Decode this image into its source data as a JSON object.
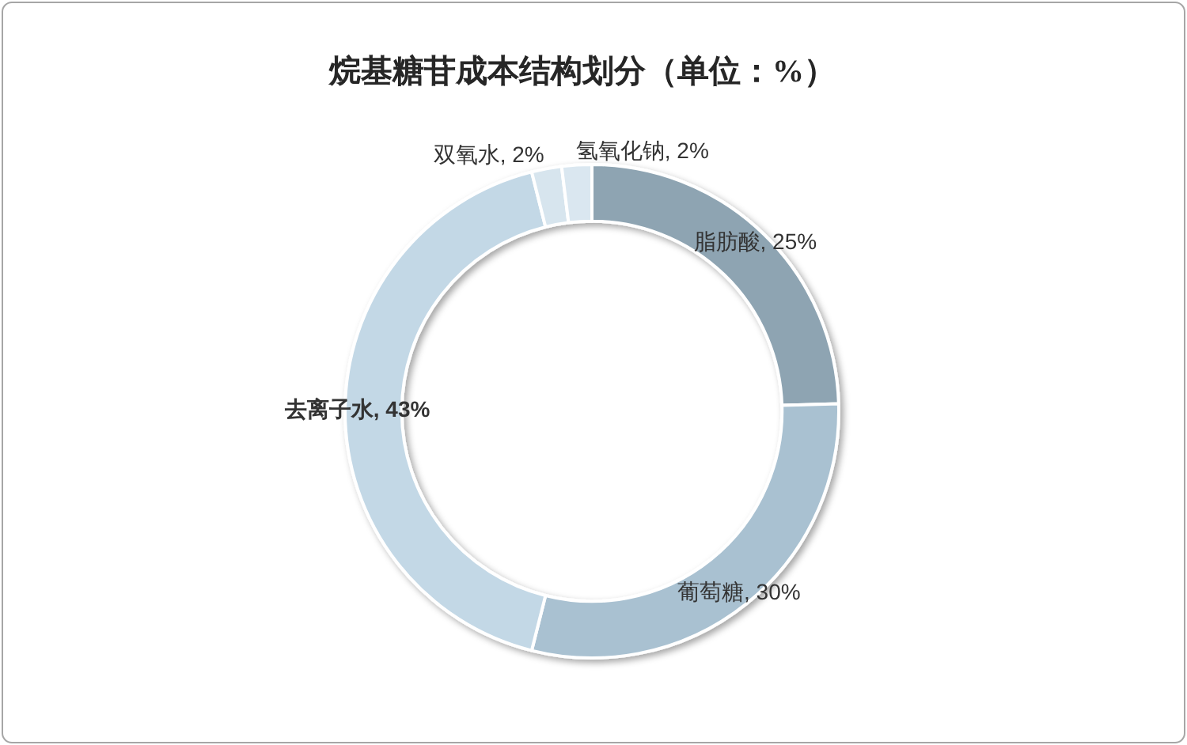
{
  "chart_data": {
    "type": "donut",
    "title": "烷基糖苷成本结构划分（单位：%）",
    "categories": [
      "脂肪酸",
      "葡萄糖",
      "去离子水",
      "双氧水",
      "氢氧化钠"
    ],
    "values": [
      25,
      30,
      43,
      2,
      2
    ],
    "colors": [
      "#8ea4b2",
      "#a9c1d1",
      "#c3d8e6",
      "#d7e5ee",
      "#dae7f0"
    ],
    "value_labels": [
      "25%",
      "30%",
      "43%",
      "2%",
      "2%"
    ]
  }
}
